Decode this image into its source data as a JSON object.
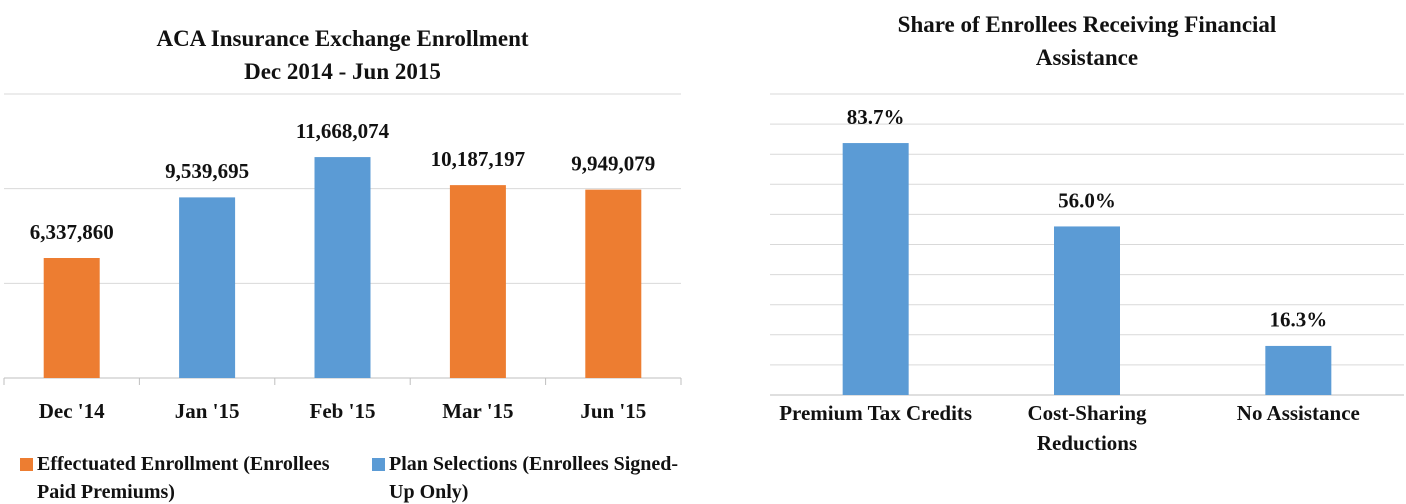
{
  "chart_data": [
    {
      "type": "bar",
      "title": "ACA Insurance Exchange Enrollment",
      "subtitle": "Dec 2014 - Jun 2015",
      "categories": [
        "Dec '14",
        "Jan '15",
        "Feb '15",
        "Mar '15",
        "Jun '15"
      ],
      "series": [
        {
          "name": "Effectuated Enrollment (Enrollees Paid Premiums)",
          "color": "#ed7d31",
          "values": [
            6337860,
            null,
            null,
            10187197,
            9949079
          ],
          "value_labels": [
            "6,337,860",
            null,
            null,
            "10,187,197",
            "9,949,079"
          ]
        },
        {
          "name": "Plan Selections (Enrollees Signed-Up Only)",
          "color": "#5b9bd5",
          "values": [
            null,
            9539695,
            11668074,
            null,
            null
          ],
          "value_labels": [
            null,
            "9,539,695",
            "11,668,074",
            null,
            null
          ]
        }
      ],
      "ylim": [
        0,
        15000000
      ],
      "yticks": [
        0,
        5000000,
        10000000,
        15000000
      ],
      "grid": true,
      "legend": "bottom"
    },
    {
      "type": "bar",
      "title": "Share of Enrollees Receiving Financial Assistance",
      "categories": [
        "Premium Tax Credits",
        "Cost-Sharing Reductions",
        "No Assistance"
      ],
      "values": [
        83.7,
        56.0,
        16.3
      ],
      "value_labels": [
        "83.7%",
        "56.0%",
        "16.3%"
      ],
      "color": "#5b9bd5",
      "ylim": [
        0,
        100
      ],
      "yticks": [
        0,
        10,
        20,
        30,
        40,
        50,
        60,
        70,
        80,
        90,
        100
      ],
      "grid": true
    }
  ]
}
